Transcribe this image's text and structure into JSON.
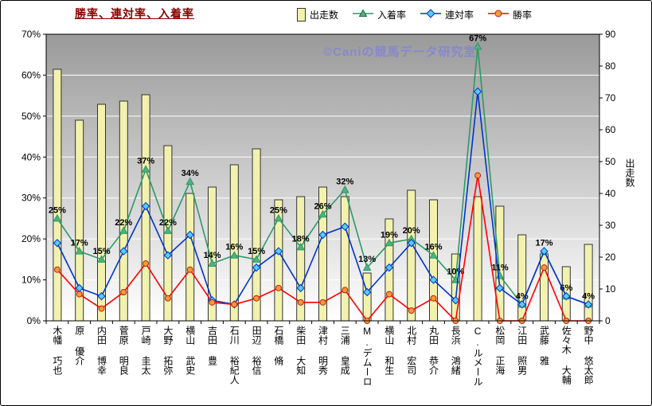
{
  "watermark": "©Caniの競馬データ研究室",
  "legend": [
    {
      "label": "出走数"
    },
    {
      "label": "入着率"
    },
    {
      "label": "連対率"
    },
    {
      "label": "勝率"
    }
  ],
  "chart_data": {
    "type": "bar",
    "subtype": "combo-bar-line",
    "title": "勝率、連対率、入着率",
    "categories": [
      "木幡 巧也",
      "原 優介",
      "内田 博幸",
      "菅原 明良",
      "戸崎 圭太",
      "大野 拓弥",
      "横山 武史",
      "吉田 豊",
      "石川 裕紀人",
      "田辺 裕信",
      "石橋 脩",
      "柴田 大知",
      "津村 明秀",
      "三浦 皇成",
      "M.デムーロ",
      "横山 和生",
      "北村 宏司",
      "丸田 恭介",
      "長浜 鴻緒",
      "C.ルメール",
      "松岡 正海",
      "江田 照男",
      "武藤 雅",
      "佐々木 大輔",
      "野中 悠太郎"
    ],
    "series": [
      {
        "name": "出走数",
        "type": "bar",
        "axis": "right",
        "color": "#F2F2AE",
        "border": "#333333",
        "values": [
          79,
          63,
          68,
          69,
          71,
          55,
          40,
          42,
          49,
          54,
          38,
          39,
          42,
          39,
          15,
          32,
          41,
          38,
          21,
          39,
          36,
          27,
          21,
          17,
          24
        ]
      },
      {
        "name": "入着率",
        "type": "line",
        "marker": "triangle",
        "axis": "left",
        "color": "#2E9966",
        "marker_fill": "#4DB380",
        "values": [
          25,
          17,
          15,
          22,
          37,
          22,
          34,
          14,
          16,
          15,
          25,
          18,
          26,
          32,
          13,
          19,
          20,
          16,
          10,
          67,
          11,
          4,
          17,
          6,
          4
        ],
        "labels": [
          "25%",
          "17%",
          "15%",
          "22%",
          "37%",
          "22%",
          "34%",
          "14%",
          "16%",
          "15%",
          "25%",
          "18%",
          "26%",
          "32%",
          "13%",
          "19%",
          "20%",
          "16%",
          "10%",
          "67%",
          "11%",
          "4%",
          "17%",
          "6%",
          "4%"
        ]
      },
      {
        "name": "連対率",
        "type": "line",
        "marker": "diamond",
        "axis": "left",
        "color": "#0033CC",
        "marker_fill": "#55CCFF",
        "values": [
          19,
          8,
          6,
          17,
          28,
          16,
          21,
          5,
          4,
          13,
          17,
          8,
          21,
          23,
          7,
          13,
          19,
          10,
          5,
          56,
          8,
          4,
          17,
          6,
          4
        ]
      },
      {
        "name": "勝率",
        "type": "line",
        "marker": "circle",
        "axis": "left",
        "color": "#FF0000",
        "marker_fill": "#FF9933",
        "values": [
          12.5,
          6.5,
          3,
          7,
          14,
          5.5,
          12.5,
          4.5,
          4,
          5.5,
          8,
          4.5,
          4.5,
          7.5,
          0,
          6.5,
          2.5,
          5.5,
          0,
          35.5,
          0,
          0,
          13,
          0,
          0
        ]
      }
    ],
    "left_axis": {
      "min": 0,
      "max": 70,
      "step": 10,
      "ticks": [
        "0%",
        "10%",
        "20%",
        "30%",
        "40%",
        "50%",
        "60%",
        "70%"
      ]
    },
    "right_axis": {
      "min": 0,
      "max": 90,
      "step": 10,
      "title": "出走数",
      "ticks": [
        "0",
        "10",
        "20",
        "30",
        "40",
        "50",
        "60",
        "70",
        "80",
        "90"
      ]
    },
    "plot_background": {
      "top": "#9A9A9A",
      "bottom": "#FFFFFF"
    },
    "gridline_color": "#FFFFFF",
    "grid": true,
    "legend_position": "top"
  }
}
